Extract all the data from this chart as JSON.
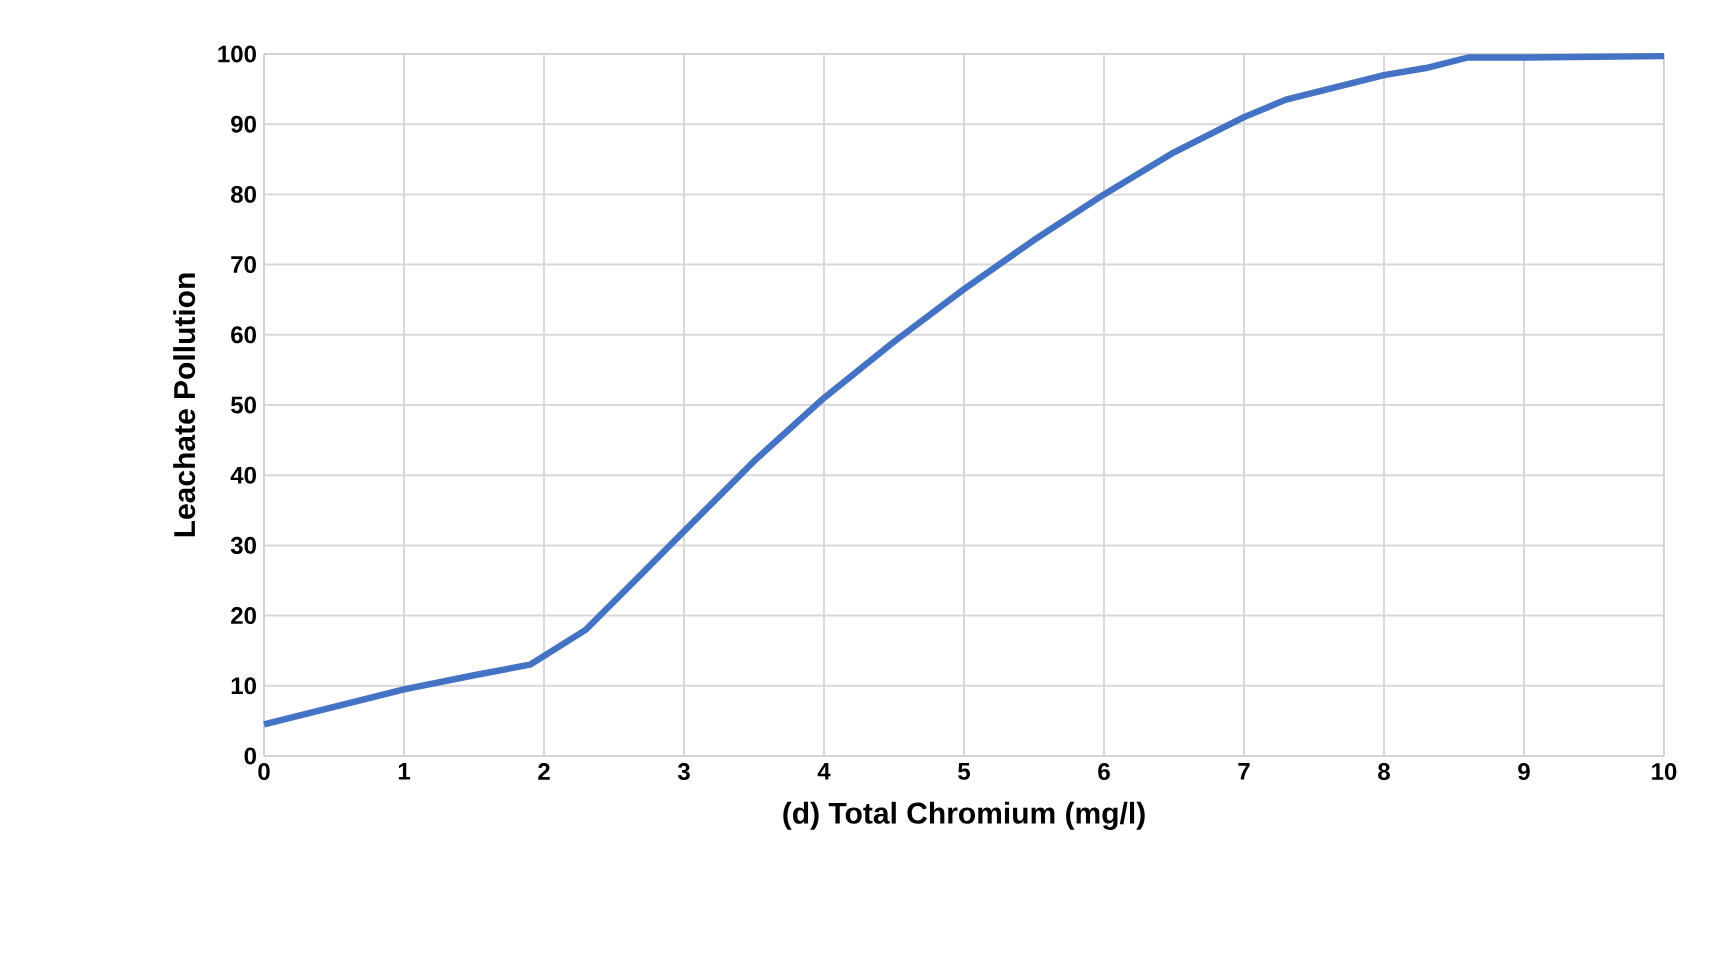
{
  "chart_data": {
    "type": "line",
    "xlabel": "(d) Total Chromium (mg/l)",
    "ylabel": "Leachate Pollution",
    "x": [
      0,
      0.5,
      1,
      1.5,
      1.9,
      2.3,
      2.7,
      3,
      3.5,
      4,
      4.5,
      5,
      5.5,
      6,
      6.5,
      7,
      7.3,
      7.7,
      8,
      8.3,
      8.6,
      9,
      10
    ],
    "series": [
      {
        "color": "#4472c4",
        "values": [
          4.5,
          7,
          9.5,
          11.5,
          13,
          18,
          26,
          32,
          42,
          51,
          59,
          66.5,
          73.5,
          80,
          86,
          91,
          93.5,
          95.5,
          97,
          98,
          99.5,
          99.5,
          99.7
        ]
      }
    ],
    "xlim": [
      0,
      10
    ],
    "ylim": [
      0,
      100
    ],
    "xticks": [
      0,
      1,
      2,
      3,
      4,
      5,
      6,
      7,
      8,
      9,
      10
    ],
    "yticks": [
      0,
      10,
      20,
      30,
      40,
      50,
      60,
      70,
      80,
      90,
      100
    ],
    "grid": true,
    "marker": "none",
    "line_style": "solid"
  }
}
